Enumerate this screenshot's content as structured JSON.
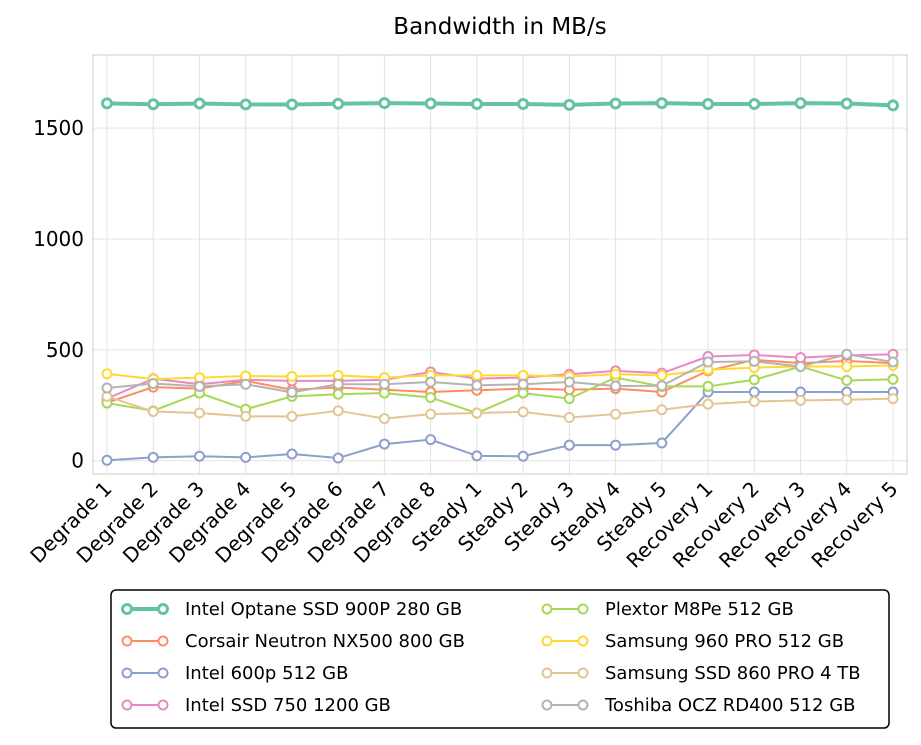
{
  "chart_data": {
    "type": "line",
    "title": "Bandwidth in MB/s",
    "xlabel": "",
    "ylabel": "",
    "ylim": [
      -60,
      1830
    ],
    "yticks": [
      0,
      500,
      1000,
      1500
    ],
    "grid": true,
    "legend_position": "bottom",
    "categories": [
      "Degrade 1",
      "Degrade 2",
      "Degrade 3",
      "Degrade 4",
      "Degrade 5",
      "Degrade 6",
      "Degrade 7",
      "Degrade 8",
      "Steady 1",
      "Steady 2",
      "Steady 3",
      "Steady 4",
      "Steady 5",
      "Recovery 1",
      "Recovery 2",
      "Recovery 3",
      "Recovery 4",
      "Recovery 5"
    ],
    "series": [
      {
        "name": "Intel Optane SSD 900P 280 GB",
        "color": "#66c2a5",
        "bold": true,
        "values": [
          1612,
          1608,
          1611,
          1607,
          1607,
          1610,
          1613,
          1611,
          1609,
          1609,
          1605,
          1611,
          1613,
          1609,
          1609,
          1613,
          1611,
          1603
        ]
      },
      {
        "name": "Corsair Neutron NX500 800 GB",
        "color": "#fc8d62",
        "values": [
          262,
          332,
          325,
          360,
          320,
          330,
          320,
          310,
          318,
          325,
          320,
          325,
          310,
          405,
          455,
          440,
          450,
          440
        ]
      },
      {
        "name": "Intel 600p 512 GB",
        "color": "#8da0cb",
        "values": [
          2,
          15,
          20,
          15,
          30,
          12,
          75,
          95,
          22,
          20,
          70,
          70,
          80,
          310,
          310,
          310,
          310,
          310
        ]
      },
      {
        "name": "Intel SSD 750 1200 GB",
        "color": "#e78ac3",
        "values": [
          280,
          370,
          345,
          365,
          360,
          360,
          365,
          400,
          370,
          375,
          390,
          405,
          395,
          470,
          477,
          465,
          475,
          480
        ]
      },
      {
        "name": "Plextor M8Pe 512 GB",
        "color": "#a6d854",
        "values": [
          260,
          225,
          305,
          232,
          290,
          300,
          305,
          285,
          215,
          305,
          280,
          375,
          335,
          335,
          365,
          425,
          362,
          367
        ]
      },
      {
        "name": "Samsung 960 PRO 512 GB",
        "color": "#ffd92f",
        "values": [
          392,
          368,
          375,
          382,
          380,
          385,
          375,
          385,
          385,
          385,
          380,
          390,
          385,
          410,
          420,
          425,
          425,
          430
        ]
      },
      {
        "name": "Samsung SSD 860 PRO 4 TB",
        "color": "#e5c494",
        "values": [
          290,
          222,
          215,
          200,
          200,
          225,
          190,
          210,
          215,
          220,
          195,
          210,
          230,
          255,
          267,
          272,
          275,
          280
        ]
      },
      {
        "name": "Toshiba OCZ RD400 512 GB",
        "color": "#b3b3b3",
        "values": [
          328,
          348,
          335,
          345,
          308,
          345,
          345,
          355,
          340,
          345,
          355,
          337,
          338,
          445,
          448,
          425,
          480,
          445
        ]
      }
    ]
  }
}
